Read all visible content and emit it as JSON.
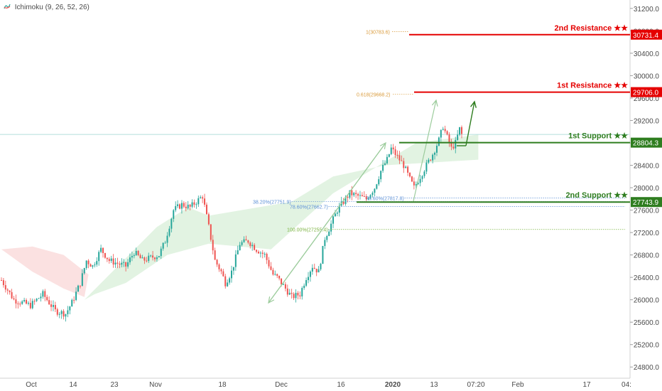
{
  "indicator": {
    "icon": "ichimoku-cloud-icon",
    "label": "Ichimoku (9, 26, 52, 26)"
  },
  "colors": {
    "up": "#26a69a",
    "down": "#ef5350",
    "resistance": "#e50000",
    "support": "#2e7d1f",
    "fib_orange": "#d99a3a",
    "fib_green": "#7cb342",
    "fib_blue": "#5b8fd6",
    "arrow_light": "#9ccc9c",
    "arrow_dark": "#2e7d1f",
    "cloud_green": "#dff2df",
    "cloud_red": "#fbdede",
    "baseline": "#b2dfdb"
  },
  "chart_data": {
    "type": "candlestick",
    "ylim": [
      24600,
      31350
    ],
    "y_ticks": [
      24800,
      25200,
      25600,
      26000,
      26400,
      26800,
      27200,
      27600,
      28000,
      28400,
      28800,
      29200,
      29600,
      30000,
      30400,
      30800,
      31200
    ],
    "y_tick_labels": [
      "24800.0",
      "25200.0",
      "25600.0",
      "26000.0",
      "26400.0",
      "26800.0",
      "27200.0",
      "27600.0",
      "28000.0",
      "28400.0",
      "28800.0",
      "29200.0",
      "29600.0",
      "30000.0",
      "30400.0",
      "30800.0",
      "31200.0"
    ],
    "x_labels": [
      "Oct",
      "14",
      "23",
      "Nov",
      "18",
      "Dec",
      "16",
      "2020",
      "13",
      "07:20",
      "Feb",
      "17",
      "04:"
    ],
    "price_path": [
      [
        0,
        26350
      ],
      [
        6,
        26000
      ],
      [
        14,
        25900
      ],
      [
        20,
        26100
      ],
      [
        26,
        25800
      ],
      [
        31,
        25750
      ],
      [
        34,
        25950
      ],
      [
        38,
        26300
      ],
      [
        41,
        26700
      ],
      [
        44,
        26600
      ],
      [
        48,
        26900
      ],
      [
        52,
        26700
      ],
      [
        56,
        26650
      ],
      [
        60,
        26600
      ],
      [
        64,
        26850
      ],
      [
        68,
        26700
      ],
      [
        72,
        26750
      ],
      [
        76,
        26800
      ],
      [
        79,
        27050
      ],
      [
        83,
        27600
      ],
      [
        87,
        27700
      ],
      [
        91,
        27650
      ],
      [
        94,
        27750
      ],
      [
        97,
        27850
      ],
      [
        100,
        27300
      ],
      [
        103,
        26700
      ],
      [
        106,
        26500
      ],
      [
        108,
        26300
      ],
      [
        111,
        26500
      ],
      [
        115,
        27000
      ],
      [
        119,
        27050
      ],
      [
        123,
        26900
      ],
      [
        127,
        26800
      ],
      [
        131,
        26450
      ],
      [
        133,
        26400
      ],
      [
        137,
        26200
      ],
      [
        140,
        26050
      ],
      [
        144,
        26100
      ],
      [
        147,
        26400
      ],
      [
        150,
        26600
      ],
      [
        153,
        26500
      ],
      [
        156,
        27100
      ],
      [
        159,
        27350
      ],
      [
        162,
        27600
      ],
      [
        165,
        27750
      ],
      [
        168,
        27900
      ],
      [
        172,
        27850
      ],
      [
        176,
        27800
      ],
      [
        180,
        28000
      ],
      [
        183,
        28300
      ],
      [
        186,
        28500
      ],
      [
        188,
        28700
      ],
      [
        191,
        28550
      ],
      [
        194,
        28400
      ],
      [
        197,
        28150
      ],
      [
        199,
        28000
      ],
      [
        202,
        28200
      ],
      [
        205,
        28400
      ],
      [
        208,
        28600
      ],
      [
        211,
        28850
      ],
      [
        213,
        29100
      ],
      [
        215,
        28900
      ],
      [
        217,
        28700
      ],
      [
        219,
        28800
      ],
      [
        221,
        29050
      ],
      [
        222,
        28950
      ]
    ],
    "ichimoku_cloud": {
      "green": [
        [
          75,
          27300
        ],
        [
          90,
          27650
        ],
        [
          100,
          27500
        ],
        [
          140,
          27750
        ],
        [
          160,
          28200
        ],
        [
          185,
          28400
        ],
        [
          230,
          28500
        ],
        [
          230,
          28950
        ],
        [
          200,
          28800
        ],
        [
          160,
          27900
        ],
        [
          130,
          26900
        ],
        [
          100,
          27000
        ],
        [
          80,
          26800
        ],
        [
          60,
          26300
        ],
        [
          45,
          26100
        ],
        [
          40,
          26000
        ]
      ],
      "red": [
        [
          0,
          26900
        ],
        [
          15,
          26500
        ],
        [
          30,
          26200
        ],
        [
          40,
          26050
        ],
        [
          42,
          26450
        ],
        [
          30,
          26800
        ],
        [
          15,
          26950
        ]
      ]
    },
    "levels": [
      {
        "name": "2nd Resistance ★★",
        "value": 30731.4,
        "label": "30731.4",
        "kind": "resistance"
      },
      {
        "name": "1st Resistance ★★",
        "value": 29706.0,
        "label": "29706.0",
        "kind": "resistance"
      },
      {
        "name": "1st Support ★★",
        "value": 28804.3,
        "label": "28804.3",
        "kind": "support"
      },
      {
        "name": "2nd Support ★★",
        "value": 27743.9,
        "label": "27743.9",
        "kind": "support"
      }
    ],
    "fib_labels": [
      {
        "text": "1(30783.6)",
        "value": 30783.6,
        "color": "fib_orange"
      },
      {
        "text": "0.618(29668.2)",
        "value": 29668.2,
        "color": "fib_orange"
      },
      {
        "text": "38.20%(27751.9)",
        "value": 27751.9,
        "color": "fib_blue"
      },
      {
        "text": "78.60%(27662.7)",
        "value": 27662.7,
        "color": "fib_blue"
      },
      {
        "text": "78.60%(27817.8)",
        "value": 27817.8,
        "color": "fib_blue"
      },
      {
        "text": "100.00%(27255.4)",
        "value": 27255.4,
        "color": "fib_green"
      }
    ],
    "baseline_value": 28950
  }
}
